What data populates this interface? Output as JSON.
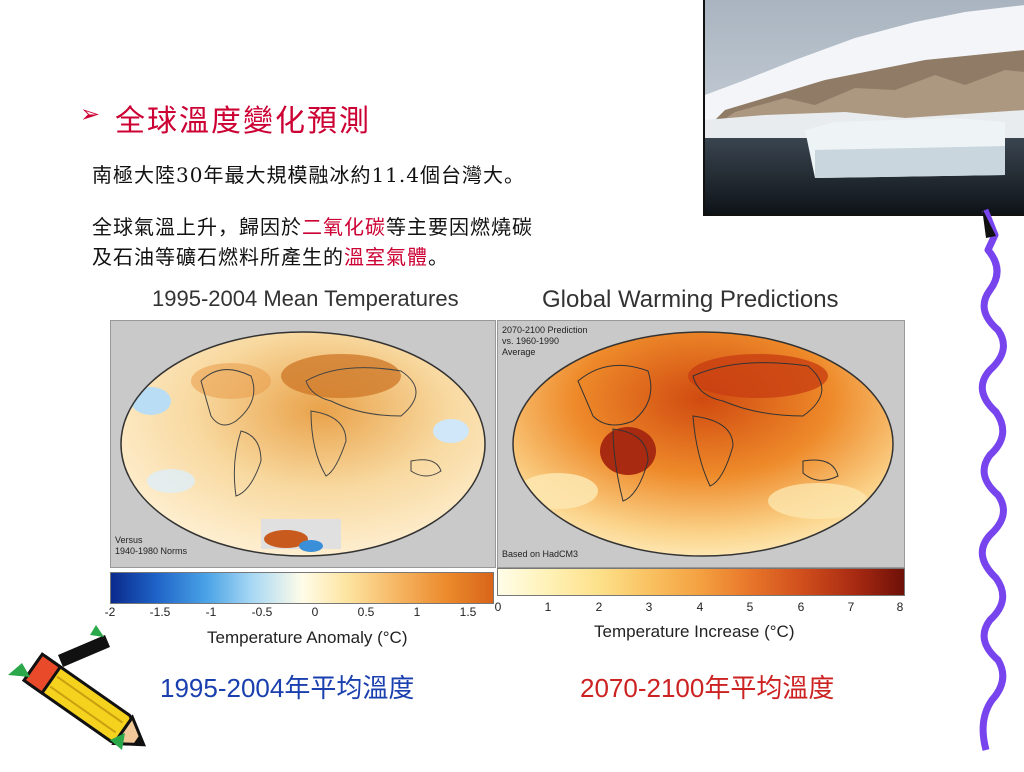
{
  "slide": {
    "heading": "全球溫度變化預測",
    "line1": "南極大陸30年最大規模融冰約11.4個台灣大。",
    "line2_part1": "全球氣溫上升，歸因於",
    "line2_hl1": "二氧化碳",
    "line2_part2": "等主要因燃燒碳",
    "line3_part1": "及石油等礦石燃料所產生的",
    "line3_hl": "溫室氣體",
    "line3_end": "。"
  },
  "left_map": {
    "title": "1995-2004 Mean Temperatures",
    "note_line1": "Versus",
    "note_line2": "1940-1980 Norms",
    "ticks": [
      "-2",
      "-1.5",
      "-1",
      "-0.5",
      "0",
      "0.5",
      "1",
      "1.5"
    ],
    "colorbar_label": "Temperature Anomaly (°C)",
    "caption": "1995-2004年平均溫度"
  },
  "right_map": {
    "title": "Global Warming Predictions",
    "note_line1": "2070-2100 Prediction",
    "note_line2": "vs. 1960-1990",
    "note_line3": "Average",
    "source": "Based on HadCM3",
    "ticks": [
      "0",
      "1",
      "2",
      "3",
      "4",
      "5",
      "6",
      "7",
      "8"
    ],
    "colorbar_label": "Temperature Increase (°C)",
    "caption": "2070-2100年平均溫度"
  },
  "colors": {
    "heading": "#cc0033",
    "caption_left": "#1a3fae",
    "caption_right": "#cc2222",
    "wavy_border": "#7744ee"
  },
  "decorations": [
    "iceberg-photo",
    "pencil-clipart",
    "wavy-border"
  ]
}
